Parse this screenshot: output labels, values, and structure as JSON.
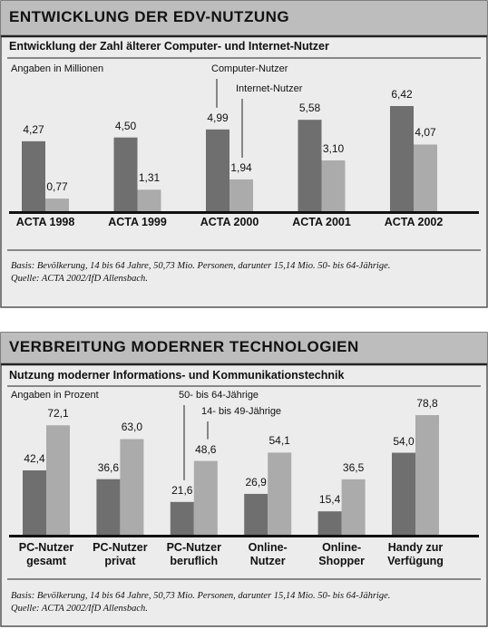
{
  "chart_data": [
    {
      "type": "bar",
      "title": "ENTWICKLUNG DER EDV-NUTZUNG",
      "subtitle": "Entwicklung der Zahl älterer Computer- und Internet-Nutzer",
      "unit_label": "Angaben in Millionen",
      "categories": [
        "ACTA 1998",
        "ACTA 1999",
        "ACTA 2000",
        "ACTA 2001",
        "ACTA 2002"
      ],
      "series": [
        {
          "name": "Computer-Nutzer",
          "color": "#6f6f6f",
          "values": [
            4.27,
            4.5,
            4.99,
            5.58,
            6.42
          ],
          "value_labels": [
            "4,27",
            "4,50",
            "4,99",
            "5,58",
            "6,42"
          ]
        },
        {
          "name": "Internet-Nutzer",
          "color": "#ababab",
          "values": [
            0.77,
            1.31,
            1.94,
            3.1,
            4.07
          ],
          "value_labels": [
            "0,77",
            "1,31",
            "1,94",
            "3,10",
            "4,07"
          ]
        }
      ],
      "footnotes": [
        "Basis: Bevölkerung, 14 bis 64 Jahre, 50,73 Mio. Personen, darunter 15,14 Mio. 50- bis 64-Jährige.",
        "Quelle: ACTA 2002/IfD Allensbach."
      ]
    },
    {
      "type": "bar",
      "title": "VERBREITUNG MODERNER TECHNOLOGIEN",
      "subtitle": "Nutzung moderner Informations- und Kommunikationstechnik",
      "unit_label": "Angaben in Prozent",
      "categories": [
        "PC-Nutzer gesamt",
        "PC-Nutzer privat",
        "PC-Nutzer beruflich",
        "Online-Nutzer",
        "Online-Shopper",
        "Handy zur Verfügung"
      ],
      "series": [
        {
          "name": "50- bis 64-Jährige",
          "color": "#6f6f6f",
          "values": [
            42.4,
            36.6,
            21.6,
            26.9,
            15.4,
            54
          ],
          "value_labels": [
            "42,4",
            "36,6",
            "21,6",
            "26,9",
            "15,4",
            "54,0"
          ]
        },
        {
          "name": "14- bis 49-Jährige",
          "color": "#ababab",
          "values": [
            72.1,
            63,
            48.6,
            54.1,
            36.5,
            78.8
          ],
          "value_labels": [
            "72,1",
            "63,0",
            "48,6",
            "54,1",
            "36,5",
            "78,8"
          ]
        }
      ],
      "footnotes": [
        "Basis: Bevölkerung, 14 bis 64 Jahre, 50,73 Mio. Personen, darunter 15,14 Mio. 50- bis 64-Jährige.",
        "Quelle: ACTA 2002/IfD Allensbach."
      ]
    }
  ]
}
